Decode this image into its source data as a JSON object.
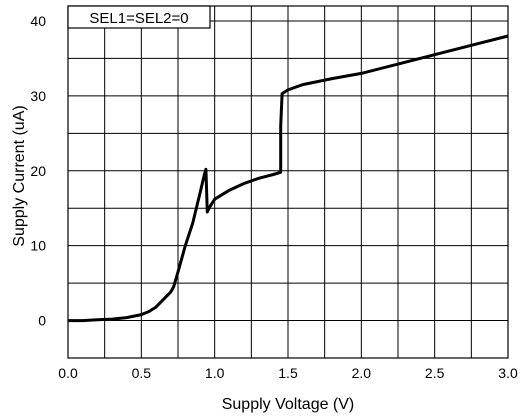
{
  "chart_data": {
    "type": "line",
    "title": "",
    "xlabel": "Supply Voltage (V)",
    "ylabel": "Supply Current (uA)",
    "xlim": [
      0.0,
      3.0
    ],
    "ylim": [
      -5,
      42
    ],
    "x_ticks": [
      0.0,
      0.5,
      1.0,
      1.5,
      2.0,
      2.5,
      3.0
    ],
    "x_tick_labels": [
      "0.0",
      "0.5",
      "1.0",
      "1.5",
      "2.0",
      "2.5",
      "3.0"
    ],
    "x_grid": [
      0.0,
      0.25,
      0.5,
      0.75,
      1.0,
      1.25,
      1.5,
      1.75,
      2.0,
      2.25,
      2.5,
      2.75,
      3.0
    ],
    "y_ticks": [
      0,
      10,
      20,
      30,
      40
    ],
    "y_tick_labels": [
      "0",
      "10",
      "20",
      "30",
      "40"
    ],
    "y_grid": [
      -5,
      0,
      5,
      10,
      15,
      20,
      25,
      30,
      35,
      40
    ],
    "grid": true,
    "legend_position": "top-left",
    "series": [
      {
        "name": "SEL1=SEL2=0",
        "color": "#000000",
        "x": [
          0.0,
          0.1,
          0.2,
          0.3,
          0.4,
          0.5,
          0.55,
          0.6,
          0.65,
          0.7,
          0.72,
          0.75,
          0.8,
          0.85,
          0.9,
          0.93,
          0.94,
          0.95,
          0.97,
          1.0,
          1.05,
          1.1,
          1.2,
          1.3,
          1.4,
          1.45,
          1.45,
          1.46,
          1.5,
          1.6,
          1.8,
          2.0,
          2.2,
          2.4,
          2.6,
          2.8,
          3.0
        ],
        "y": [
          0.0,
          0.0,
          0.1,
          0.2,
          0.4,
          0.8,
          1.2,
          1.8,
          2.8,
          3.8,
          4.5,
          6.5,
          10.0,
          13.0,
          17.0,
          19.5,
          20.2,
          14.5,
          15.3,
          16.2,
          16.8,
          17.4,
          18.3,
          19.0,
          19.5,
          19.8,
          26.0,
          30.3,
          30.8,
          31.5,
          32.3,
          33.0,
          34.0,
          35.0,
          36.0,
          37.0,
          38.0
        ]
      }
    ]
  }
}
